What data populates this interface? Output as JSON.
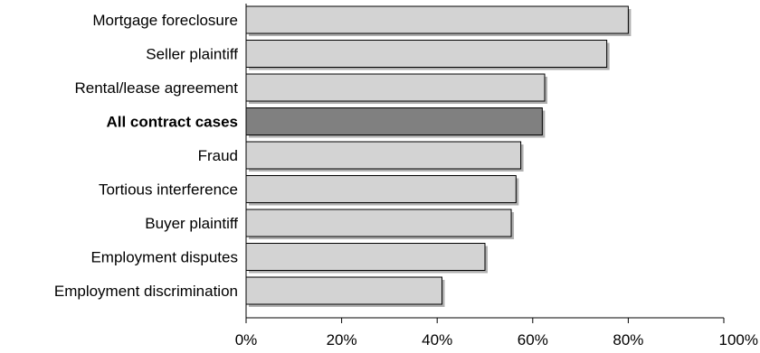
{
  "chart_data": {
    "type": "bar",
    "orientation": "horizontal",
    "title": "",
    "xlabel": "",
    "ylabel": "",
    "categories": [
      "Mortgage foreclosure",
      "Seller plaintiff",
      "Rental/lease agreement",
      "All contract cases",
      "Fraud",
      "Tortious interference",
      "Buyer plaintiff",
      "Employment disputes",
      "Employment discrimination"
    ],
    "values": [
      0.8,
      0.755,
      0.625,
      0.62,
      0.575,
      0.565,
      0.555,
      0.5,
      0.41
    ],
    "highlight_category": "All contract cases",
    "xlim": [
      0,
      1
    ],
    "x_ticks": [
      0,
      0.2,
      0.4,
      0.6,
      0.8,
      1.0
    ],
    "x_tick_labels": [
      "0%",
      "20%",
      "40%",
      "60%",
      "80%",
      "100%"
    ],
    "grid": false,
    "legend": "none",
    "colors": {
      "bar": "#d3d3d3",
      "highlight_bar": "#808080",
      "shadow": "#b0b0b0",
      "outline": "#000000"
    }
  }
}
